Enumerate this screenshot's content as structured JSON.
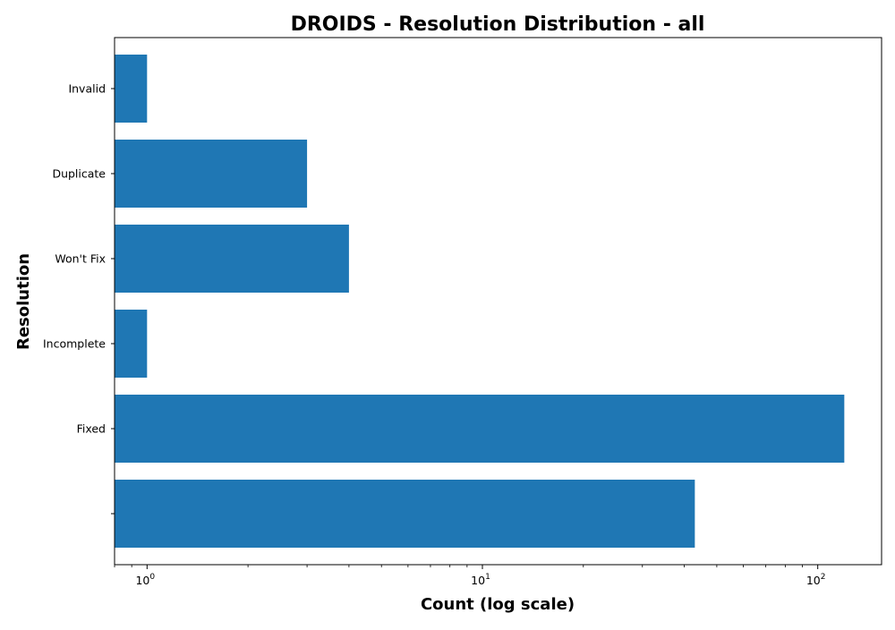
{
  "chart_data": {
    "type": "bar",
    "orientation": "horizontal",
    "title": "DROIDS - Resolution Distribution - all",
    "xlabel": "Count (log scale)",
    "ylabel": "Resolution",
    "x_scale": "log",
    "xlim": [
      0.8,
      155
    ],
    "x_ticks": [
      {
        "value": 1,
        "base": "10",
        "exp": "0"
      },
      {
        "value": 10,
        "base": "10",
        "exp": "1"
      },
      {
        "value": 100,
        "base": "10",
        "exp": "2"
      }
    ],
    "categories": [
      "",
      "Fixed",
      "Incomplete",
      "Won't Fix",
      "Duplicate",
      "Invalid"
    ],
    "values": [
      43,
      120,
      1,
      4,
      3,
      1
    ],
    "bar_color": "#1f77b4",
    "grid": false,
    "legend": "none"
  }
}
